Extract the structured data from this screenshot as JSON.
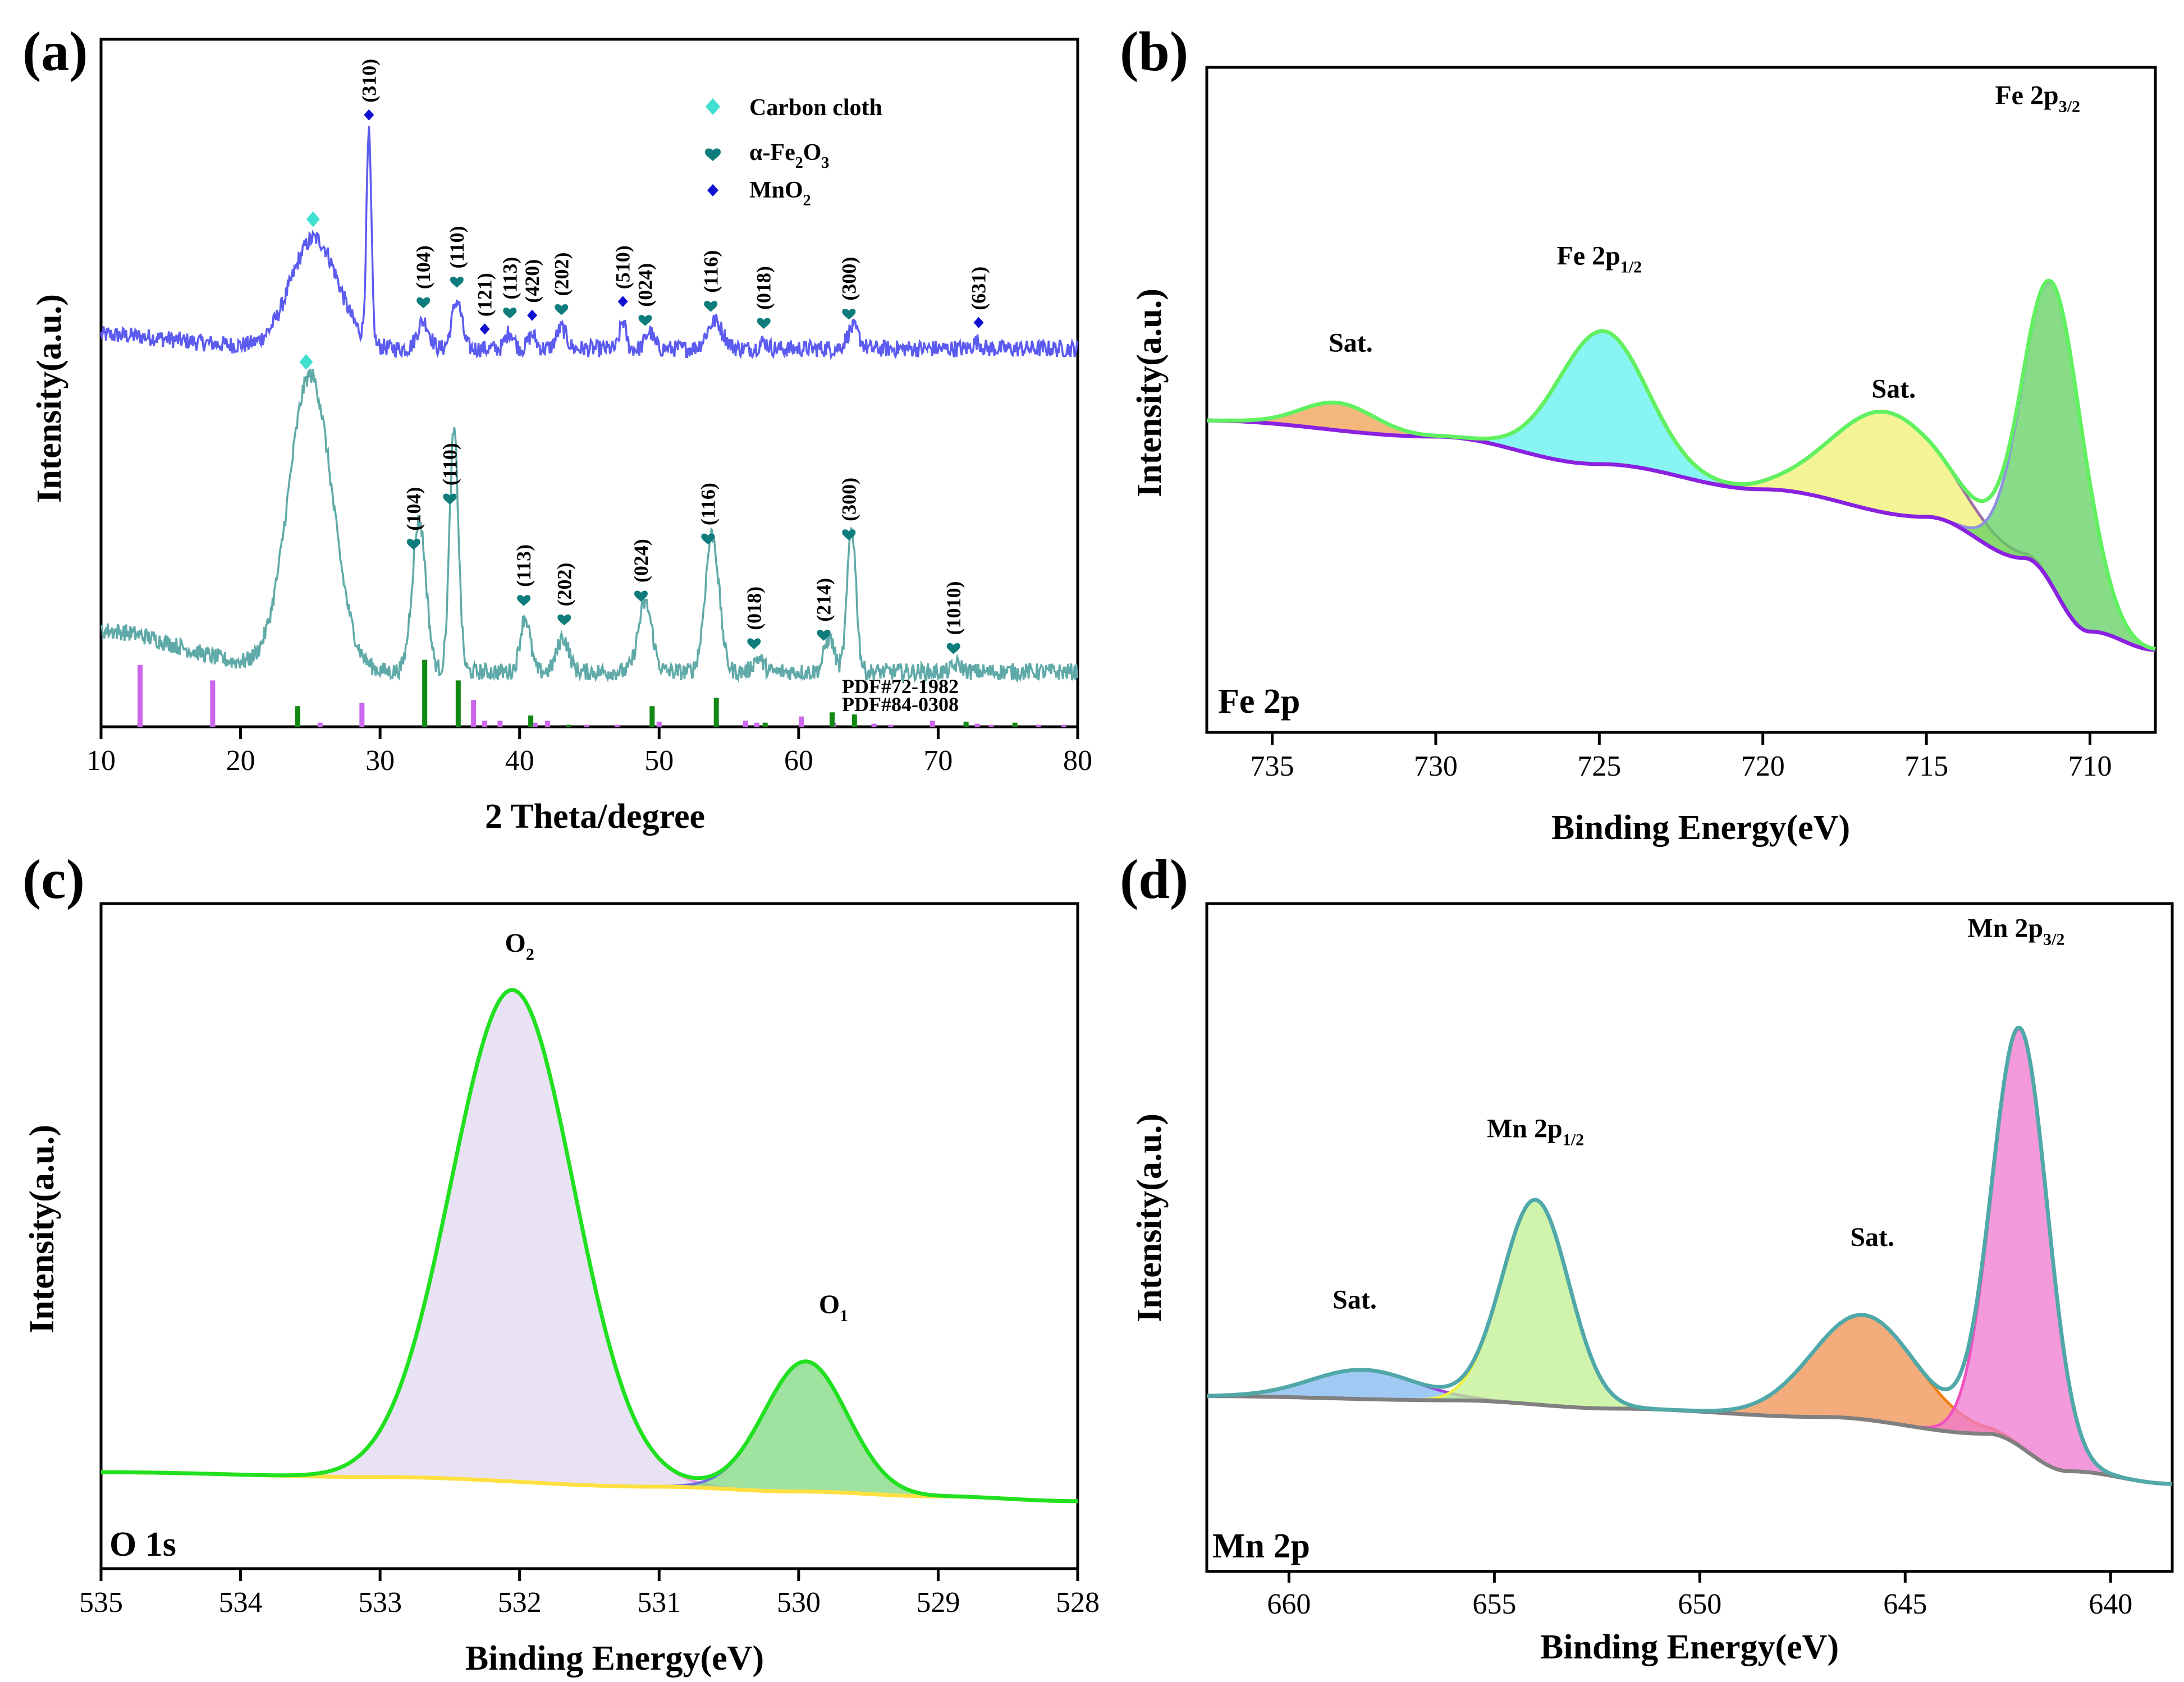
{
  "panels": {
    "a": {
      "letter": "(a)"
    },
    "b": {
      "letter": "(b)"
    },
    "c": {
      "letter": "(c)"
    },
    "d": {
      "letter": "(d)"
    }
  },
  "chart_data": [
    {
      "id": "a",
      "type": "line",
      "title": "",
      "xlabel": "2 Theta/degree",
      "ylabel": "Intensity(a.u.)",
      "xlim": [
        10,
        80
      ],
      "xticks": [
        10,
        20,
        30,
        40,
        50,
        60,
        70,
        80
      ],
      "legend": {
        "placement": "top-right",
        "entries": [
          {
            "label": "Carbon cloth",
            "marker": "diamond",
            "color": "#40E0D0"
          },
          {
            "label": "α-Fe",
            "sub1": "2",
            "mid": "O",
            "sub2": "3",
            "marker": "heart",
            "color": "#0E7C7B"
          },
          {
            "label": "MnO",
            "sub1": "2",
            "marker": "diamond-small",
            "color": "#1010D0"
          }
        ]
      },
      "series": [
        {
          "name": "MnO2/α-Fe2O3 on carbon cloth (upper pattern)",
          "color": "#5B5BF0",
          "baseline": 0.22,
          "offset": 0.55,
          "peaks": [
            [
              25.3,
              0.16,
              2.4
            ],
            [
              29.2,
              0.3,
              0.25
            ],
            [
              33.1,
              0.04,
              0.6
            ],
            [
              35.5,
              0.07,
              0.5
            ],
            [
              39.3,
              0.025,
              0.4
            ],
            [
              40.9,
              0.02,
              0.4
            ],
            [
              43.0,
              0.03,
              0.5
            ],
            [
              47.4,
              0.04,
              0.3
            ],
            [
              49.3,
              0.025,
              0.4
            ],
            [
              54.0,
              0.04,
              0.8
            ],
            [
              57.5,
              0.01,
              0.4
            ],
            [
              63.9,
              0.03,
              0.6
            ],
            [
              72.8,
              0.01,
              0.4
            ]
          ],
          "annotations": [
            {
              "x": 29.2,
              "hkl": "(310)",
              "marker": "mno2"
            },
            {
              "x": 33.1,
              "hkl": "(104)",
              "marker": "fe2o3"
            },
            {
              "x": 35.5,
              "hkl": "(110)",
              "marker": "fe2o3"
            },
            {
              "x": 37.5,
              "hkl": "(121)",
              "marker": "mno2"
            },
            {
              "x": 39.3,
              "hkl": "(113)",
              "marker": "fe2o3"
            },
            {
              "x": 40.9,
              "hkl": "(420)",
              "marker": "mno2"
            },
            {
              "x": 43.0,
              "hkl": "(202)",
              "marker": "fe2o3"
            },
            {
              "x": 47.4,
              "hkl": "(510)",
              "marker": "mno2"
            },
            {
              "x": 49.0,
              "hkl": "(024)",
              "marker": "fe2o3"
            },
            {
              "x": 53.7,
              "hkl": "(116)",
              "marker": "fe2o3"
            },
            {
              "x": 57.5,
              "hkl": "(018)",
              "marker": "fe2o3"
            },
            {
              "x": 63.6,
              "hkl": "(300)",
              "marker": "fe2o3"
            },
            {
              "x": 72.9,
              "hkl": "(631)",
              "marker": "mno2"
            },
            {
              "x": 25.2,
              "hkl": "",
              "marker": "cc"
            }
          ]
        },
        {
          "name": "α-Fe2O3 on carbon cloth (lower pattern)",
          "color": "#5FAAA8",
          "baseline": 0.22,
          "offset": 0.08,
          "peaks": [
            [
              25.0,
              0.43,
              2.2
            ],
            [
              32.8,
              0.22,
              0.7
            ],
            [
              35.3,
              0.35,
              0.45
            ],
            [
              40.4,
              0.08,
              0.5
            ],
            [
              43.1,
              0.05,
              0.6
            ],
            [
              49.0,
              0.1,
              0.7
            ],
            [
              53.8,
              0.2,
              0.7
            ],
            [
              57.1,
              0.02,
              0.5
            ],
            [
              62.2,
              0.05,
              0.5
            ],
            [
              63.8,
              0.21,
              0.45
            ],
            [
              71.4,
              0.01,
              0.5
            ]
          ],
          "annotations": [
            {
              "x": 24.7,
              "hkl": "",
              "marker": "cc"
            },
            {
              "x": 32.4,
              "hkl": "(104)",
              "marker": "fe2o3"
            },
            {
              "x": 35.0,
              "hkl": "(110)",
              "marker": "fe2o3"
            },
            {
              "x": 40.3,
              "hkl": "(113)",
              "marker": "fe2o3"
            },
            {
              "x": 43.2,
              "hkl": "(202)",
              "marker": "fe2o3"
            },
            {
              "x": 48.7,
              "hkl": "(024)",
              "marker": "fe2o3"
            },
            {
              "x": 53.5,
              "hkl": "(116)",
              "marker": "fe2o3"
            },
            {
              "x": 56.8,
              "hkl": "(018)",
              "marker": "fe2o3"
            },
            {
              "x": 61.8,
              "hkl": "(214)",
              "marker": "fe2o3"
            },
            {
              "x": 63.6,
              "hkl": "(300)",
              "marker": "fe2o3"
            },
            {
              "x": 71.1,
              "hkl": "(1010)",
              "marker": "fe2o3"
            }
          ]
        }
      ],
      "references": [
        {
          "name": "PDF#72-1982",
          "color": "#3030E0",
          "bar_color": "#CC66EE",
          "lines": [
            [
              12.8,
              0.6
            ],
            [
              18.0,
              0.45
            ],
            [
              25.7,
              0.04
            ],
            [
              28.7,
              0.23
            ],
            [
              36.7,
              0.26
            ],
            [
              37.5,
              0.06
            ],
            [
              38.6,
              0.06
            ],
            [
              41.1,
              0.04
            ],
            [
              42.0,
              0.06
            ],
            [
              44.8,
              0.02
            ],
            [
              47.0,
              0.02
            ],
            [
              50.0,
              0.05
            ],
            [
              56.2,
              0.06
            ],
            [
              57.0,
              0.04
            ],
            [
              60.2,
              0.1
            ],
            [
              62.5,
              0.04
            ],
            [
              65.4,
              0.03
            ],
            [
              66.6,
              0.02
            ],
            [
              69.6,
              0.06
            ],
            [
              72.8,
              0.03
            ],
            [
              73.8,
              0.02
            ],
            [
              77.2,
              0.02
            ],
            [
              79.0,
              0.02
            ]
          ]
        },
        {
          "name": "PDF#84-0308",
          "color": "#2E8B57",
          "bar_color": "#118811",
          "lines": [
            [
              24.1,
              0.2
            ],
            [
              33.2,
              0.65
            ],
            [
              35.6,
              0.45
            ],
            [
              40.8,
              0.11
            ],
            [
              43.5,
              0.02
            ],
            [
              49.5,
              0.2
            ],
            [
              54.1,
              0.28
            ],
            [
              57.6,
              0.04
            ],
            [
              62.4,
              0.14
            ],
            [
              64.0,
              0.12
            ],
            [
              72.0,
              0.05
            ],
            [
              75.5,
              0.04
            ]
          ]
        }
      ]
    },
    {
      "id": "b",
      "type": "area",
      "title": "",
      "xlabel": "Binding Energy(eV)",
      "ylabel": "Intensity(a.u.)",
      "xlim": [
        737,
        708
      ],
      "xticks": [
        735,
        730,
        725,
        720,
        715,
        710
      ],
      "inset_label": "Fe 2p",
      "background": {
        "points": [
          [
            737,
            0.68
          ],
          [
            730,
            0.645
          ],
          [
            725,
            0.585
          ],
          [
            720,
            0.53
          ],
          [
            715,
            0.47
          ],
          [
            712,
            0.38
          ],
          [
            710,
            0.22
          ],
          [
            708,
            0.18
          ]
        ],
        "color": "#8A20E0"
      },
      "components": [
        {
          "name": "Sat.",
          "center": 733.0,
          "height": 0.06,
          "width": 1.6,
          "fill": "#F0A050",
          "stroke": "#C0A0A0"
        },
        {
          "name": "Fe 2p1/2",
          "center": 724.9,
          "height": 0.29,
          "width": 1.9,
          "fill": "#60F0F0",
          "stroke": "#E090E0"
        },
        {
          "name": "Sat.",
          "center": 716.2,
          "height": 0.22,
          "width": 2.4,
          "fill": "#F0F070",
          "stroke": "#A070A0"
        },
        {
          "name": "Fe 2p3/2",
          "center": 711.1,
          "height": 0.66,
          "width": 1.3,
          "fill": "#60D060",
          "stroke": "#9090E0"
        }
      ],
      "envelope_color": "#60F060",
      "peak_labels": [
        {
          "text": "Sat.",
          "x": 732.6,
          "y": 0.83
        },
        {
          "text": "Fe 2p",
          "sub": "1/2",
          "x": 725.0,
          "y": 1.02
        },
        {
          "text": "Sat.",
          "x": 716.0,
          "y": 0.73
        },
        {
          "text": "Fe 2p",
          "sub": "3/2",
          "x": 711.6,
          "y": 1.37
        }
      ]
    },
    {
      "id": "c",
      "type": "area",
      "title": "",
      "xlabel": "Binding Energy(eV)",
      "ylabel": "Intensity(a.u.)",
      "xlim": [
        535,
        528
      ],
      "xticks": [
        535,
        534,
        533,
        532,
        531,
        530,
        529,
        528
      ],
      "inset_label": "O 1s",
      "background": {
        "points": [
          [
            535,
            0.2
          ],
          [
            533,
            0.19
          ],
          [
            531,
            0.17
          ],
          [
            530,
            0.16
          ],
          [
            529,
            0.15
          ],
          [
            528,
            0.14
          ]
        ],
        "color": "#FFE040"
      },
      "components": [
        {
          "name": "O2",
          "center": 532.05,
          "height": 1.02,
          "width": 0.62,
          "fill": "#E0D8F0",
          "stroke": "#F0A0E0"
        },
        {
          "name": "O1",
          "center": 529.95,
          "height": 0.27,
          "width": 0.42,
          "fill": "#80D880",
          "stroke": "#7070E0"
        }
      ],
      "envelope_color": "#20E020",
      "peak_labels": [
        {
          "text": "O",
          "sub": "2",
          "x": 532.0,
          "y": 1.28
        },
        {
          "text": "O",
          "sub": "1",
          "x": 529.75,
          "y": 0.53
        }
      ]
    },
    {
      "id": "d",
      "type": "area",
      "title": "",
      "xlabel": "Binding Energy(eV)",
      "ylabel": "Intensity(a.u.)",
      "xlim": [
        662,
        638.5
      ],
      "xticks": [
        660,
        655,
        650,
        645,
        640
      ],
      "inset_label": "Mn 2p",
      "background": {
        "points": [
          [
            662,
            0.42
          ],
          [
            656,
            0.41
          ],
          [
            652,
            0.39
          ],
          [
            647,
            0.37
          ],
          [
            643,
            0.33
          ],
          [
            641,
            0.24
          ],
          [
            638.5,
            0.21
          ]
        ],
        "color": "#808080"
      },
      "components": [
        {
          "name": "Sat.",
          "center": 658.2,
          "height": 0.07,
          "width": 1.8,
          "fill": "#80B8F0",
          "stroke": "#A040E0"
        },
        {
          "name": "Mn 2p1/2",
          "center": 654.0,
          "height": 0.49,
          "width": 1.15,
          "fill": "#C0F090",
          "stroke": "#F0F040"
        },
        {
          "name": "Sat.",
          "center": 646.0,
          "height": 0.25,
          "width": 1.8,
          "fill": "#F09050",
          "stroke": "#F08010"
        },
        {
          "name": "Mn 2p3/2",
          "center": 642.2,
          "height": 1.0,
          "width": 0.95,
          "fill": "#F078D0",
          "stroke": "#F050C0"
        }
      ],
      "envelope_color": "#50A8A8",
      "peak_labels": [
        {
          "text": "Sat.",
          "x": 658.4,
          "y": 0.63
        },
        {
          "text": "Mn 2p",
          "sub": "1/2",
          "x": 654.0,
          "y": 1.04
        },
        {
          "text": "Sat.",
          "x": 645.8,
          "y": 0.78
        },
        {
          "text": "Mn 2p",
          "sub": "3/2",
          "x": 642.3,
          "y": 1.52
        }
      ]
    }
  ]
}
